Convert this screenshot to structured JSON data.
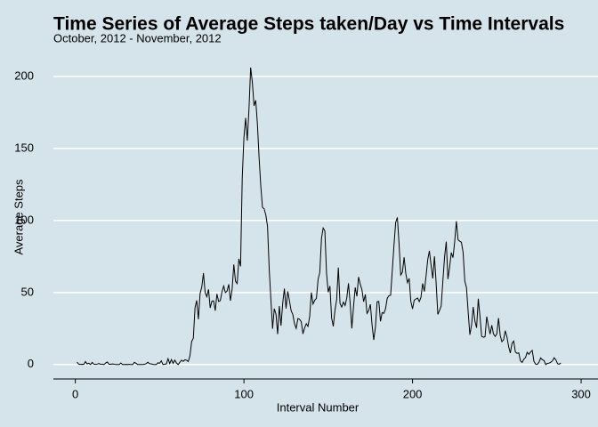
{
  "chart_data": {
    "type": "line",
    "title": "Time Series of Average Steps taken/Day vs Time Intervals",
    "subtitle": "October, 2012 - November, 2012",
    "x_label": "Interval Number",
    "y_label": "Average Steps",
    "x": [
      1,
      2,
      3,
      4,
      5,
      6,
      7,
      8,
      9,
      10,
      11,
      12,
      13,
      14,
      15,
      16,
      17,
      18,
      19,
      20,
      21,
      22,
      23,
      24,
      25,
      26,
      27,
      28,
      29,
      30,
      31,
      32,
      33,
      34,
      35,
      36,
      37,
      38,
      39,
      40,
      41,
      42,
      43,
      44,
      45,
      46,
      47,
      48,
      49,
      50,
      51,
      52,
      53,
      54,
      55,
      56,
      57,
      58,
      59,
      60,
      61,
      62,
      63,
      64,
      65,
      66,
      67,
      68,
      69,
      70,
      71,
      72,
      73,
      74,
      75,
      76,
      77,
      78,
      79,
      80,
      81,
      82,
      83,
      84,
      85,
      86,
      87,
      88,
      89,
      90,
      91,
      92,
      93,
      94,
      95,
      96,
      97,
      98,
      99,
      100,
      101,
      102,
      103,
      104,
      105,
      106,
      107,
      108,
      109,
      110,
      111,
      112,
      113,
      114,
      115,
      116,
      117,
      118,
      119,
      120,
      121,
      122,
      123,
      124,
      125,
      126,
      127,
      128,
      129,
      130,
      131,
      132,
      133,
      134,
      135,
      136,
      137,
      138,
      139,
      140,
      141,
      142,
      143,
      144,
      145,
      146,
      147,
      148,
      149,
      150,
      151,
      152,
      153,
      154,
      155,
      156,
      157,
      158,
      159,
      160,
      161,
      162,
      163,
      164,
      165,
      166,
      167,
      168,
      169,
      170,
      171,
      172,
      173,
      174,
      175,
      176,
      177,
      178,
      179,
      180,
      181,
      182,
      183,
      184,
      185,
      186,
      187,
      188,
      189,
      190,
      191,
      192,
      193,
      194,
      195,
      196,
      197,
      198,
      199,
      200,
      201,
      202,
      203,
      204,
      205,
      206,
      207,
      208,
      209,
      210,
      211,
      212,
      213,
      214,
      215,
      216,
      217,
      218,
      219,
      220,
      221,
      222,
      223,
      224,
      225,
      226,
      227,
      228,
      229,
      230,
      231,
      232,
      233,
      234,
      235,
      236,
      237,
      238,
      239,
      240,
      241,
      242,
      243,
      244,
      245,
      246,
      247,
      248,
      249,
      250,
      251,
      252,
      253,
      254,
      255,
      256,
      257,
      258,
      259,
      260,
      261,
      262,
      263,
      264,
      265,
      266,
      267,
      268,
      269,
      270,
      271,
      272,
      273,
      274,
      275,
      276,
      277,
      278,
      279,
      280,
      281,
      282,
      283,
      284,
      285,
      286,
      287,
      288
    ],
    "series": [
      {
        "color": "#000000",
        "values": [
          1.7,
          0.3,
          0.1,
          0.2,
          0.1,
          2.1,
          0.5,
          0.9,
          0,
          1.5,
          0.3,
          0.1,
          0.3,
          0.7,
          0.2,
          0.3,
          0,
          1.1,
          1.8,
          0.2,
          0.2,
          0.4,
          0.3,
          0,
          0,
          0,
          1.1,
          0,
          0,
          0.1,
          0,
          0.2,
          0,
          0,
          1.5,
          0.9,
          0,
          0,
          0,
          0,
          0.2,
          0.6,
          1.6,
          0.6,
          0.5,
          0.1,
          0,
          0,
          1.2,
          0.9,
          2.6,
          0,
          0.3,
          0.4,
          4.1,
          0.7,
          3.5,
          0.8,
          3.1,
          1.1,
          0,
          1.6,
          3,
          2.2,
          3.3,
          3,
          2.1,
          6.1,
          16,
          18.3,
          39.5,
          44.5,
          31.5,
          49.3,
          53.8,
          63.5,
          50,
          47.1,
          52.2,
          39.3,
          44,
          44.2,
          37.4,
          49,
          43.8,
          44.4,
          50.5,
          54.5,
          49.9,
          51,
          55.7,
          44.3,
          52.3,
          69.5,
          57.8,
          56.2,
          73.4,
          68.2,
          129.4,
          157.5,
          171.2,
          155.4,
          177.3,
          206.2,
          195.9,
          179.6,
          183.4,
          167,
          143.5,
          124,
          109.1,
          108.1,
          103.7,
          96,
          66.2,
          45.2,
          24.8,
          38.8,
          35,
          21.1,
          40.6,
          27,
          42.4,
          52.7,
          38.9,
          50.8,
          44.3,
          37.4,
          34.7,
          28.3,
          25.1,
          31.9,
          31.4,
          29.7,
          21.3,
          25.5,
          28.4,
          26.5,
          33.4,
          50,
          42,
          44.6,
          46,
          59.2,
          63.9,
          87.7,
          94.8,
          92.8,
          63.4,
          50.2,
          54.5,
          32.4,
          26.5,
          37.7,
          45.1,
          67.3,
          42.3,
          39.9,
          43.3,
          41,
          46.2,
          56.4,
          42.8,
          25.1,
          40,
          53.5,
          47.3,
          60.8,
          55.8,
          52,
          43.6,
          48.7,
          35.5,
          37.5,
          41.8,
          27.5,
          17.1,
          26.1,
          43.6,
          43.8,
          30,
          36.1,
          35.5,
          38.8,
          46,
          47.8,
          48.1,
          65.3,
          82.9,
          98.7,
          102.1,
          84,
          62.1,
          64.1,
          74.5,
          63.2,
          56.9,
          59.8,
          43.9,
          38.6,
          44.7,
          45.5,
          46.2,
          43.7,
          46.6,
          56.3,
          50.7,
          61.2,
          72.7,
          78.9,
          68.9,
          59.7,
          75.1,
          56.5,
          34.8,
          37.5,
          40.7,
          58,
          74.7,
          85.3,
          59.3,
          67.8,
          77.7,
          74.2,
          85.3,
          99.5,
          86.6,
          85.6,
          84.9,
          77.8,
          58,
          53.4,
          36.3,
          20.7,
          27.4,
          40,
          30.2,
          25.5,
          45.7,
          33.5,
          19.6,
          19,
          19.3,
          33.3,
          26.8,
          21.2,
          27.3,
          21.3,
          19.5,
          21.3,
          32.3,
          20.2,
          15.9,
          17.2,
          23.5,
          19.2,
          12.5,
          8,
          14.7,
          16.3,
          8.7,
          7.8,
          8.1,
          2.6,
          1.5,
          3.7,
          4.8,
          8.5,
          7.1,
          8.7,
          9.8,
          2.2,
          0.3,
          0.1,
          1.6,
          4.6,
          3.3,
          2.8,
          0,
          0.8,
          1,
          1.6,
          2.6,
          4.7,
          3.3,
          0.6,
          0.2,
          1.1
        ]
      }
    ],
    "xlim": [
      -13,
      310
    ],
    "ylim": [
      -10,
      216
    ],
    "xticks": [
      0,
      100,
      200,
      300
    ],
    "yticks": [
      0,
      50,
      100,
      150,
      200
    ],
    "grid": true
  }
}
